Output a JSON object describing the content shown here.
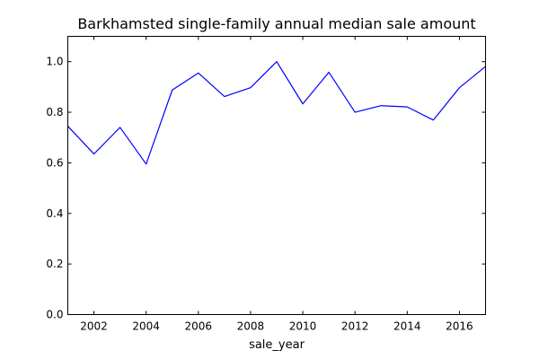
{
  "chart_data": {
    "type": "line",
    "title": "Barkhamsted single-family annual median sale amount",
    "xlabel": "sale_year",
    "ylabel": "",
    "xlim": [
      2001,
      2017
    ],
    "ylim": [
      0.0,
      1.1
    ],
    "xticks": [
      2002,
      2004,
      2006,
      2008,
      2010,
      2012,
      2014,
      2016
    ],
    "yticks": [
      0.0,
      0.2,
      0.4,
      0.6,
      0.8,
      1.0
    ],
    "xtick_labels": [
      "2002",
      "2004",
      "2006",
      "2008",
      "2010",
      "2012",
      "2014",
      "2016"
    ],
    "ytick_labels": [
      "0.0",
      "0.2",
      "0.4",
      "0.6",
      "0.8",
      "1.0"
    ],
    "grid": false,
    "series": [
      {
        "color": "#0000ff",
        "x": [
          2001,
          2002,
          2003,
          2004,
          2005,
          2006,
          2007,
          2008,
          2009,
          2010,
          2011,
          2012,
          2013,
          2014,
          2015,
          2016,
          2017
        ],
        "y": [
          0.745,
          0.635,
          0.74,
          0.595,
          0.888,
          0.955,
          0.862,
          0.897,
          1.0,
          0.833,
          0.958,
          0.8,
          0.826,
          0.821,
          0.769,
          0.897,
          0.981
        ]
      }
    ]
  }
}
